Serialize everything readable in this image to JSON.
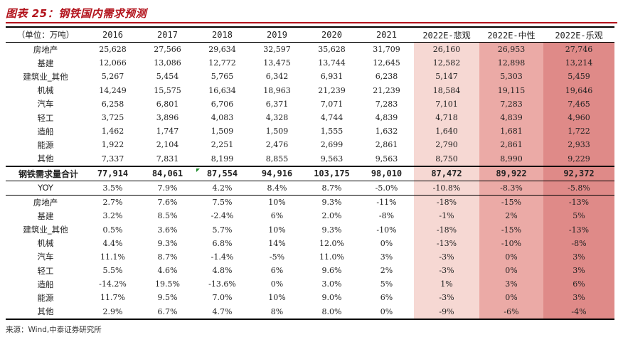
{
  "title": "图表 25：钢铁国内需求预测",
  "unit_label": "（单位：万吨）",
  "columns": [
    "2016",
    "2017",
    "2018",
    "2019",
    "2020",
    "2021",
    "2022E-悲观",
    "2022E-中性",
    "2022E-乐观"
  ],
  "demand_rows": [
    {
      "label": "房地产",
      "values": [
        "25,628",
        "27,566",
        "29,634",
        "32,597",
        "35,628",
        "31,709",
        "26,160",
        "26,953",
        "27,746"
      ]
    },
    {
      "label": "基建",
      "values": [
        "12,066",
        "13,086",
        "12,772",
        "13,475",
        "13,744",
        "12,645",
        "12,582",
        "12,898",
        "13,214"
      ]
    },
    {
      "label": "建筑业_其他",
      "values": [
        "5,267",
        "5,454",
        "5,765",
        "6,342",
        "6,931",
        "6,238",
        "5,147",
        "5,303",
        "5,459"
      ]
    },
    {
      "label": "机械",
      "values": [
        "14,249",
        "15,575",
        "16,634",
        "18,963",
        "21,239",
        "21,239",
        "18,584",
        "19,115",
        "19,646"
      ]
    },
    {
      "label": "汽车",
      "values": [
        "6,258",
        "6,801",
        "6,706",
        "6,371",
        "7,071",
        "7,283",
        "7,101",
        "7,283",
        "7,465"
      ]
    },
    {
      "label": "轻工",
      "values": [
        "3,725",
        "3,896",
        "4,083",
        "4,328",
        "4,744",
        "4,839",
        "4,718",
        "4,839",
        "4,960"
      ]
    },
    {
      "label": "造船",
      "values": [
        "1,462",
        "1,747",
        "1,509",
        "1,509",
        "1,555",
        "1,632",
        "1,640",
        "1,681",
        "1,722"
      ]
    },
    {
      "label": "能源",
      "values": [
        "1,922",
        "2,104",
        "2,251",
        "2,476",
        "2,699",
        "2,861",
        "2,790",
        "2,861",
        "2,933"
      ]
    },
    {
      "label": "其他",
      "values": [
        "7,337",
        "7,831",
        "8,199",
        "8,855",
        "9,563",
        "9,563",
        "8,750",
        "8,990",
        "9,229"
      ]
    }
  ],
  "total_row": {
    "label": "钢铁需求量合计",
    "values": [
      "77,914",
      "84,061",
      "87,554",
      "94,916",
      "103,175",
      "98,010",
      "87,472",
      "89,922",
      "92,372"
    ]
  },
  "yoy_row": {
    "label": "YOY",
    "values": [
      "3.5%",
      "7.9%",
      "4.2%",
      "8.4%",
      "8.7%",
      "-5.0%",
      "-10.8%",
      "-8.3%",
      "-5.8%"
    ]
  },
  "growth_rows": [
    {
      "label": "房地产",
      "values": [
        "2.7%",
        "7.6%",
        "7.5%",
        "10%",
        "9.3%",
        "-11%",
        "-18%",
        "-15%",
        "-13%"
      ]
    },
    {
      "label": "基建",
      "values": [
        "3.2%",
        "8.5%",
        "-2.4%",
        "6%",
        "2.0%",
        "-8%",
        "-1%",
        "2%",
        "5%"
      ]
    },
    {
      "label": "建筑业_其他",
      "values": [
        "0.5%",
        "3.6%",
        "5.7%",
        "10%",
        "9.3%",
        "-10%",
        "-18%",
        "-15%",
        "-13%"
      ]
    },
    {
      "label": "机械",
      "values": [
        "4.4%",
        "9.3%",
        "6.8%",
        "14%",
        "12.0%",
        "0%",
        "-13%",
        "-10%",
        "-8%"
      ]
    },
    {
      "label": "汽车",
      "values": [
        "11.1%",
        "8.7%",
        "-1.4%",
        "-5%",
        "11.0%",
        "3%",
        "-3%",
        "0%",
        "3%"
      ]
    },
    {
      "label": "轻工",
      "values": [
        "5.5%",
        "4.6%",
        "4.8%",
        "6%",
        "9.6%",
        "2%",
        "-3%",
        "0%",
        "3%"
      ]
    },
    {
      "label": "造船",
      "values": [
        "-14.2%",
        "19.5%",
        "-13.6%",
        "0%",
        "3.0%",
        "5%",
        "1%",
        "3%",
        "6%"
      ]
    },
    {
      "label": "能源",
      "values": [
        "11.7%",
        "9.5%",
        "7.0%",
        "10%",
        "9.0%",
        "6%",
        "-3%",
        "0%",
        "3%"
      ]
    },
    {
      "label": "其他",
      "values": [
        "2.9%",
        "6.7%",
        "4.7%",
        "8%",
        "8.0%",
        "0%",
        "-9%",
        "-6%",
        "-4%"
      ]
    }
  ],
  "source": "来源：Wind,中泰证券研究所",
  "colors": {
    "title": "#b2121b",
    "pess": "#f6d8d3",
    "neutral": "#ebaaa6",
    "opt": "#df8a88"
  }
}
